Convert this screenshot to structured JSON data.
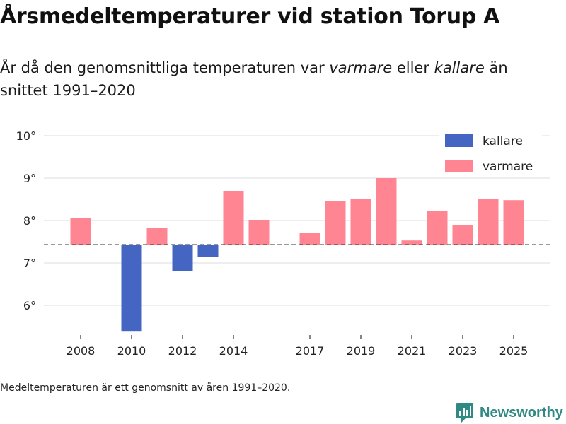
{
  "title": "Årsmedeltemperaturer vid station Torup A",
  "subtitle": {
    "part1": "År då den genomsnittliga temperaturen var ",
    "warmer_word": "varmare",
    "part2": " eller ",
    "colder_word": "kallare",
    "part3": " än snittet 1991–2020"
  },
  "footnote": "Medeltemperaturen är ett genomsnitt av åren 1991–2020.",
  "brand": {
    "name": "Newsworthy"
  },
  "colors": {
    "colder": "#4466c2",
    "warmer": "#ff8593",
    "grid": "#dddddd",
    "baseline": "#333333",
    "text": "#222222",
    "brand": "#2f8a84"
  },
  "chart_data": {
    "type": "bar",
    "title": "Årsmedeltemperaturer vid station Torup A",
    "xlabel": "",
    "ylabel": "",
    "baseline": 7.43,
    "ylim": [
      5.4,
      10.2
    ],
    "y_ticks": [
      6,
      7,
      8,
      9,
      10
    ],
    "y_tick_labels": [
      "6°",
      "7°",
      "8°",
      "9°",
      "10°"
    ],
    "x_range": [
      2007,
      2026
    ],
    "x_ticks": [
      2008,
      2010,
      2012,
      2014,
      2017,
      2019,
      2021,
      2023,
      2025
    ],
    "x_tick_labels": [
      "2008",
      "2010",
      "2012",
      "2014",
      "2017",
      "2019",
      "2021",
      "2023",
      "2025"
    ],
    "legend": [
      {
        "label": "kallare",
        "key": "colder"
      },
      {
        "label": "varmare",
        "key": "warmer"
      }
    ],
    "legend_position": "top-right",
    "years": [
      2008,
      2010,
      2011,
      2012,
      2013,
      2014,
      2015,
      2017,
      2018,
      2019,
      2020,
      2021,
      2022,
      2023,
      2024,
      2025
    ],
    "values": [
      8.05,
      5.38,
      7.83,
      6.8,
      7.15,
      8.7,
      8.0,
      7.7,
      8.45,
      8.5,
      9.0,
      7.53,
      8.22,
      7.9,
      8.5,
      8.48
    ]
  }
}
